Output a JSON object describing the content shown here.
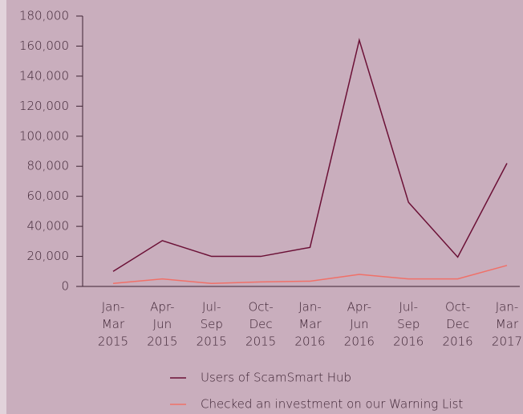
{
  "chart_data": {
    "type": "line",
    "categories": [
      [
        "Jan-",
        "Mar",
        "2015"
      ],
      [
        "Apr-",
        "Jun",
        "2015"
      ],
      [
        "Jul-",
        "Sep",
        "2015"
      ],
      [
        "Oct-",
        "Dec",
        "2015"
      ],
      [
        "Jan-",
        "Mar",
        "2016"
      ],
      [
        "Apr-",
        "Jun",
        "2016"
      ],
      [
        "Jul-",
        "Sep",
        "2016"
      ],
      [
        "Oct-",
        "Dec",
        "2016"
      ],
      [
        "Jan-",
        "Mar",
        "2017"
      ]
    ],
    "series": [
      {
        "name": "Users of ScamSmart Hub",
        "color": "#6b1036",
        "values": [
          10000,
          30500,
          20000,
          20000,
          26000,
          164000,
          56000,
          19500,
          82000
        ]
      },
      {
        "name": "Checked an investment on our Warning List",
        "color": "#f07068",
        "values": [
          2000,
          5000,
          2000,
          3000,
          3500,
          8000,
          5000,
          5000,
          14000
        ]
      }
    ],
    "ylim": [
      0,
      180000
    ],
    "yticks": [
      0,
      {
        "value": 20000,
        "label": "20,000"
      },
      {
        "value": 40000,
        "label": "40,000"
      },
      {
        "value": 60000,
        "label": "60,000"
      },
      {
        "value": 80000,
        "label": "80,000"
      },
      {
        "value": 100000,
        "label": "100,000"
      },
      {
        "value": 120000,
        "label": "120,000"
      },
      {
        "value": 140000,
        "label": "140,000"
      },
      {
        "value": 160000,
        "label": "160,000"
      },
      {
        "value": 180000,
        "label": "180,000"
      }
    ],
    "legend": "bottom"
  }
}
